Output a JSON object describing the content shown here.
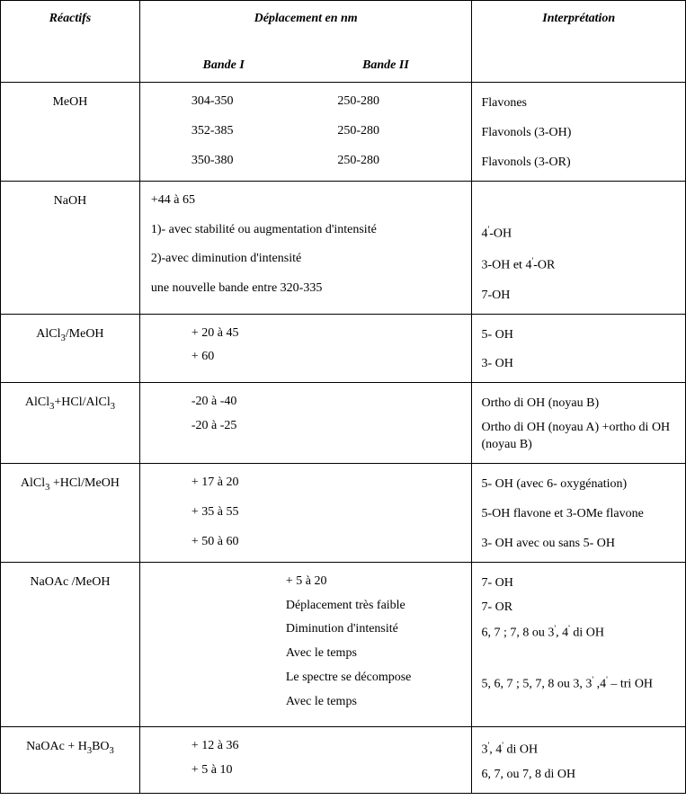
{
  "headers": {
    "reactifs": "Réactifs",
    "deplacement": "Déplacement en nm",
    "bande1": "Bande I",
    "bande2": "Bande II",
    "interpretation": "Interprétation"
  },
  "rows": [
    {
      "reactif": "MeOH",
      "depl": [
        {
          "b1": "304-350",
          "b2": "250-280"
        },
        {
          "b1": "352-385",
          "b2": "250-280"
        },
        {
          "b1": "350-380",
          "b2": "250-280"
        }
      ],
      "interp": [
        "Flavones",
        "Flavonols (3-OH)",
        "Flavonols (3-OR)"
      ]
    },
    {
      "reactif": "NaOH",
      "depl_text": [
        "+44 à 65",
        "1)- avec stabilité ou augmentation  d'intensité",
        "2)-avec diminution d'intensité",
        "une nouvelle bande entre 320-335"
      ],
      "interp_text": [
        "",
        "4'-OH",
        "3-OH et 4'-OR",
        "7-OH"
      ],
      "interp_raw": true
    },
    {
      "reactif_html": "AlCl<sub>3</sub>/MeOH",
      "reactif": "AlCl3/MeOH",
      "depl_b1": [
        "+ 20 à 45",
        "+ 60"
      ],
      "interp": [
        "5- OH",
        "3- OH"
      ]
    },
    {
      "reactif_html": "AlCl<sub>3</sub>+HCl/AlCl<sub>3</sub>",
      "reactif": "AlCl3+HCl/AlCl3",
      "depl_b1": [
        "-20 à -40",
        "-20 à -25"
      ],
      "interp": [
        "Ortho di OH (noyau B)",
        "Ortho di OH (noyau A) +ortho di OH (noyau B)"
      ]
    },
    {
      "reactif_html": "AlCl<sub>3</sub> +HCl/MeOH",
      "reactif": "AlCl3 +HCl/MeOH",
      "depl_b1": [
        "+ 17 à 20",
        "+ 35 à 55",
        "+ 50 à 60"
      ],
      "interp": [
        "5- OH (avec 6- oxygénation)",
        "5-OH flavone et 3-OMe flavone",
        "3- OH avec ou sans 5- OH"
      ]
    },
    {
      "reactif": "NaOAc /MeOH",
      "depl_b2": [
        "+ 5 à 20",
        "Déplacement très faible",
        "Diminution d'intensité",
        "Avec le temps",
        "Le spectre se décompose",
        "Avec le temps"
      ],
      "interp_text": [
        "7- OH",
        "7- OR",
        "6, 7 ; 7, 8 ou 3', 4' di OH",
        "",
        "5, 6, 7 ; 5, 7, 8 ou 3, 3' ,4' – tri OH",
        ""
      ]
    },
    {
      "reactif_html": "NaOAc + H<sub>3</sub>BO<sub>3</sub>",
      "reactif": "NaOAc + H3BO3",
      "depl_b1": [
        "+ 12 à 36",
        "+ 5 à 10"
      ],
      "interp_text": [
        "3', 4' di OH",
        "6, 7, ou 7, 8 di OH"
      ]
    }
  ]
}
